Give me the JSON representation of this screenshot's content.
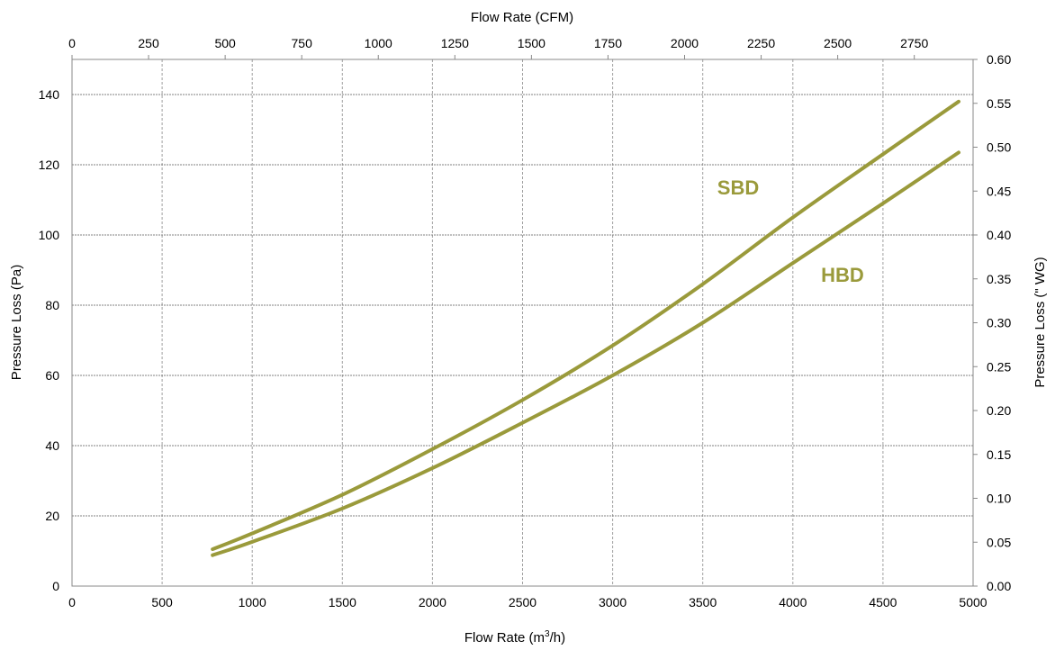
{
  "chart_data": {
    "type": "line",
    "x_label_bottom": "Flow Rate (m",
    "x_label_bottom_sup": "3",
    "x_label_bottom_tail": "/h)",
    "x_label_top": "Flow Rate (CFM)",
    "y_label_left": "Pressure Loss (Pa)",
    "y_label_right": "Pressure Loss (\" WG)",
    "xlim": [
      0,
      5000
    ],
    "ylim": [
      0,
      150
    ],
    "x_ticks": [
      0,
      500,
      1000,
      1500,
      2000,
      2500,
      3000,
      3500,
      4000,
      4500,
      5000
    ],
    "y_ticks": [
      0,
      20,
      40,
      60,
      80,
      100,
      120,
      140
    ],
    "x2lim": [
      0,
      2942
    ],
    "x2_ticks": [
      0,
      250,
      500,
      750,
      1000,
      1250,
      1500,
      1750,
      2000,
      2250,
      2500,
      2750
    ],
    "y2lim": [
      0,
      0.6
    ],
    "y2_ticks": [
      "0.00",
      "0.05",
      "0.10",
      "0.15",
      "0.20",
      "0.25",
      "0.30",
      "0.35",
      "0.40",
      "0.45",
      "0.50",
      "0.55",
      "0.60"
    ],
    "grid": true,
    "line_color": "#9a9a3b",
    "series": [
      {
        "name": "SBD",
        "x": [
          780,
          1000,
          1500,
          2000,
          2500,
          3000,
          3500,
          4000,
          4500,
          4920
        ],
        "y": [
          10.5,
          15,
          26,
          39,
          53,
          68.5,
          86,
          105,
          123,
          138
        ]
      },
      {
        "name": "HBD",
        "x": [
          780,
          1000,
          1500,
          2000,
          2500,
          3000,
          3500,
          4000,
          4500,
          4920
        ],
        "y": [
          8.8,
          12.6,
          22.1,
          33.6,
          46.5,
          60,
          75,
          92,
          109,
          123.5
        ]
      }
    ]
  }
}
